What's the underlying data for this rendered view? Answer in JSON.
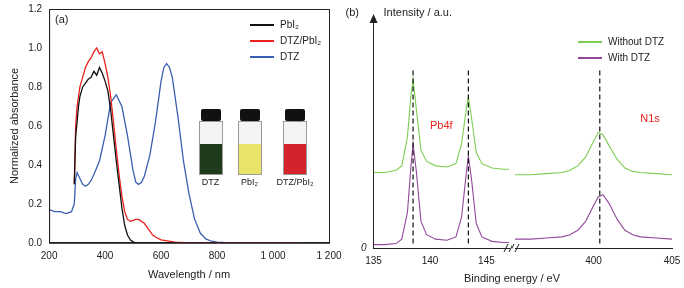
{
  "chart_data": [
    {
      "type": "line",
      "title": "(a)",
      "xlabel": "Wavelength / nm",
      "ylabel": "Normalized absorbance",
      "xlim": [
        200,
        1200
      ],
      "xticks": [
        200,
        400,
        600,
        800,
        {
          "value": 1000,
          "label": "1 000"
        },
        {
          "value": 1200,
          "label": "1 200"
        }
      ],
      "ylim": [
        0,
        1.2
      ],
      "yticks": [
        {
          "value": 0,
          "label": "0.0"
        },
        {
          "value": 0.2,
          "label": "0.2"
        },
        {
          "value": 0.4,
          "label": "0.4"
        },
        {
          "value": 0.6,
          "label": "0.6"
        },
        {
          "value": 0.8,
          "label": "0.8"
        },
        {
          "value": 1,
          "label": "1.0"
        },
        {
          "value": 1.2,
          "label": "1.2"
        }
      ],
      "grid": false,
      "legend": "upper right",
      "annotations": [
        "DTZ",
        "PbI₂",
        "DTZ/PbI₂"
      ],
      "series": [
        {
          "name": "PbI₂",
          "color": "#111111",
          "x": [
            290,
            295,
            300,
            305,
            310,
            320,
            330,
            340,
            350,
            360,
            370,
            380,
            390,
            400,
            410,
            420,
            430,
            440,
            450,
            460,
            470,
            480,
            490,
            500,
            510,
            520,
            550,
            600,
            700,
            800,
            900,
            1000,
            1100
          ],
          "values": [
            0.3,
            0.55,
            0.62,
            0.7,
            0.75,
            0.8,
            0.82,
            0.84,
            0.85,
            0.88,
            0.86,
            0.9,
            0.87,
            0.83,
            0.78,
            0.68,
            0.55,
            0.42,
            0.3,
            0.18,
            0.09,
            0.04,
            0.015,
            0.005,
            0,
            0,
            0,
            0,
            0,
            0,
            0,
            0,
            0
          ]
        },
        {
          "name": "DTZ/PbI₂",
          "color": "#e8231d",
          "x": [
            290,
            295,
            300,
            305,
            310,
            320,
            330,
            340,
            350,
            360,
            370,
            380,
            390,
            400,
            410,
            420,
            430,
            440,
            450,
            460,
            470,
            480,
            490,
            500,
            510,
            520,
            530,
            540,
            550,
            560,
            570,
            580,
            600,
            650,
            700,
            800,
            900,
            1000,
            1100
          ],
          "values": [
            0.3,
            0.6,
            0.7,
            0.75,
            0.8,
            0.85,
            0.9,
            0.93,
            0.95,
            0.98,
            1.0,
            0.97,
            0.98,
            0.92,
            0.85,
            0.75,
            0.62,
            0.48,
            0.35,
            0.24,
            0.16,
            0.12,
            0.11,
            0.115,
            0.12,
            0.12,
            0.11,
            0.1,
            0.08,
            0.06,
            0.04,
            0.03,
            0.015,
            0.003,
            0,
            0,
            0,
            0,
            0
          ]
        },
        {
          "name": "DTZ",
          "color": "#3a5fb0",
          "x": [
            200,
            220,
            240,
            260,
            280,
            290,
            295,
            300,
            310,
            320,
            330,
            340,
            350,
            360,
            380,
            400,
            420,
            440,
            460,
            480,
            500,
            510,
            520,
            530,
            540,
            560,
            580,
            600,
            610,
            620,
            630,
            640,
            660,
            680,
            700,
            720,
            740,
            760,
            780,
            800,
            850,
            900,
            1000,
            1100
          ],
          "values": [
            0.17,
            0.16,
            0.16,
            0.15,
            0.16,
            0.2,
            0.33,
            0.36,
            0.33,
            0.3,
            0.29,
            0.3,
            0.32,
            0.35,
            0.42,
            0.55,
            0.72,
            0.76,
            0.7,
            0.55,
            0.37,
            0.31,
            0.3,
            0.31,
            0.34,
            0.45,
            0.62,
            0.83,
            0.9,
            0.92,
            0.9,
            0.85,
            0.65,
            0.42,
            0.25,
            0.12,
            0.05,
            0.02,
            0.008,
            0.003,
            0,
            0,
            0,
            0
          ]
        }
      ]
    },
    {
      "type": "line",
      "title": "(b)",
      "xlabel": "Binding energy / eV",
      "ylabel": "Intensity / a.u.",
      "ylim": [
        0,
        100
      ],
      "yticks": [
        0
      ],
      "grid": false,
      "legend": "upper right",
      "series": [
        {
          "name": "Without DTZ",
          "color": "#7dce52"
        },
        {
          "name": "With DTZ",
          "color": "#93489b"
        }
      ],
      "segments": [
        {
          "xlim": [
            135,
            147
          ],
          "xticks": [
            135,
            140,
            145
          ],
          "annotations": [
            "Pb4f"
          ],
          "vlines": [
            138.5,
            143.4
          ],
          "x": [
            135,
            136,
            137,
            137.5,
            138,
            138.3,
            138.5,
            138.8,
            139.2,
            139.7,
            140.5,
            141.5,
            142.3,
            142.8,
            143.2,
            143.4,
            143.7,
            144.1,
            144.6,
            145.5,
            146.5,
            147
          ],
          "series": [
            [
              34,
              34,
              35,
              37,
              50,
              68,
              76,
              62,
              44,
              39,
              37,
              36.5,
              38,
              47,
              62,
              68,
              58,
              43,
              38,
              36,
              35.5,
              35.5
            ],
            [
              1.5,
              1.5,
              2,
              4,
              16,
              36,
              47,
              34,
              12,
              6,
              4,
              3.5,
              5,
              14,
              33,
              41.5,
              30,
              11,
              5,
              3,
              2.5,
              2.5
            ]
          ]
        },
        {
          "xlim": [
            395,
            405
          ],
          "xticks": [
            400,
            405
          ],
          "annotations": [
            "N1s"
          ],
          "vlines": [
            400.4
          ],
          "tick_labels": "x",
          "x": [
            395,
            396,
            397,
            398,
            398.5,
            399,
            399.5,
            400,
            400.3,
            400.6,
            401,
            401.5,
            402,
            402.5,
            403,
            404,
            405
          ],
          "series": [
            [
              33,
              33,
              33.5,
              34,
              35,
              37,
              41,
              48,
              52,
              51,
              46,
              40,
              36,
              34.5,
              34,
              33.5,
              33
            ],
            [
              4,
              4,
              4.5,
              5,
              6,
              8,
              12,
              19,
              23,
              24,
              20,
              13,
              8,
              6,
              5,
              4.5,
              4
            ]
          ]
        }
      ]
    }
  ]
}
